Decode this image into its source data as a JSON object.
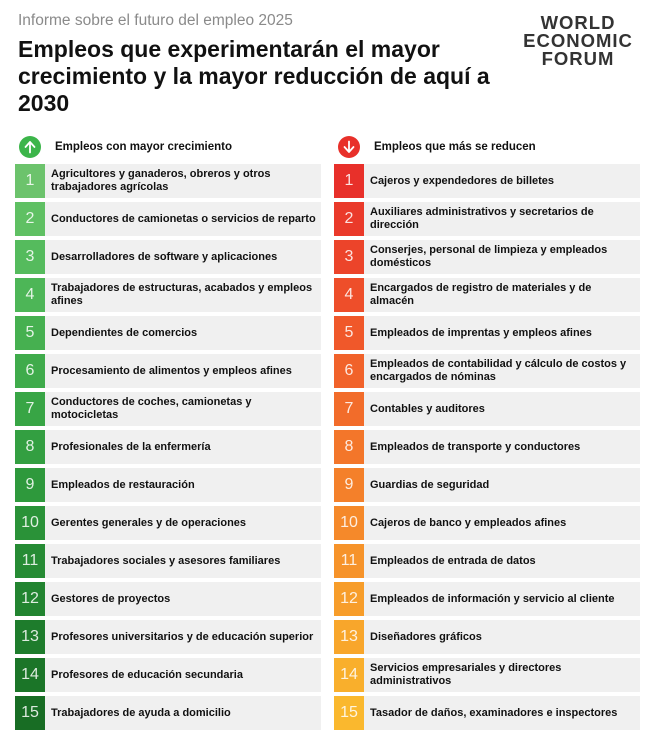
{
  "header": {
    "subtitle": "Informe sobre el futuro del empleo 2025",
    "title": "Empleos que experimentarán el mayor crecimiento y la mayor reducción de aquí a 2030"
  },
  "logo": {
    "line1": "WORLD",
    "line2": "ECONOMIC",
    "line3": "FORUM"
  },
  "growth": {
    "heading": "Empleos con mayor crecimiento",
    "icon": "arrow-up-icon",
    "items": [
      {
        "rank": "1",
        "label": "Agricultores y ganaderos, obreros y otros trabajadores agrícolas",
        "color": "#6cc36c"
      },
      {
        "rank": "2",
        "label": "Conductores de camionetas o servicios de reparto",
        "color": "#5fc063"
      },
      {
        "rank": "3",
        "label": "Desarrolladores de software y aplicaciones",
        "color": "#55bb5d"
      },
      {
        "rank": "4",
        "label": "Trabajadores de estructuras, acabados y empleos afines",
        "color": "#4db657"
      },
      {
        "rank": "5",
        "label": "Dependientes de comercios",
        "color": "#46b050"
      },
      {
        "rank": "6",
        "label": "Procesamiento de alimentos y empleos afines",
        "color": "#3fab4b"
      },
      {
        "rank": "7",
        "label": "Conductores de coches, camionetas y motocicletas",
        "color": "#38a545"
      },
      {
        "rank": "8",
        "label": "Profesionales de la enfermería",
        "color": "#339f41"
      },
      {
        "rank": "9",
        "label": "Empleados de restauración",
        "color": "#2e993c"
      },
      {
        "rank": "10",
        "label": "Gerentes generales y de operaciones",
        "color": "#2a9238"
      },
      {
        "rank": "11",
        "label": "Trabajadores sociales y asesores familiares",
        "color": "#268b34"
      },
      {
        "rank": "12",
        "label": "Gestores de proyectos",
        "color": "#228430"
      },
      {
        "rank": "13",
        "label": "Profesores universitarios y de educación superior",
        "color": "#1e7c2c"
      },
      {
        "rank": "14",
        "label": "Profesores de educación secundaria",
        "color": "#1b7528"
      },
      {
        "rank": "15",
        "label": "Trabajadores de ayuda a domicilio",
        "color": "#186d24"
      }
    ]
  },
  "decline": {
    "heading": "Empleos que más se reducen",
    "icon": "arrow-down-icon",
    "items": [
      {
        "rank": "1",
        "label": "Cajeros y expendedores de billetes",
        "color": "#e8302a"
      },
      {
        "rank": "2",
        "label": "Auxiliares administrativos y secretarios de dirección",
        "color": "#ea3a2a"
      },
      {
        "rank": "3",
        "label": "Conserjes, personal de limpieza y empleados domésticos",
        "color": "#ec442a"
      },
      {
        "rank": "4",
        "label": "Encargados de registro de materiales y de almacén",
        "color": "#ee4e2a"
      },
      {
        "rank": "5",
        "label": "Empleados de imprentas y empleos afines",
        "color": "#f0582a"
      },
      {
        "rank": "6",
        "label": "Empleados de contabilidad y cálculo de costos y encargados de nóminas",
        "color": "#f1622a"
      },
      {
        "rank": "7",
        "label": "Contables y auditores",
        "color": "#f26c2a"
      },
      {
        "rank": "8",
        "label": "Empleados de transporte y conductores",
        "color": "#f3762a"
      },
      {
        "rank": "9",
        "label": "Guardias de seguridad",
        "color": "#f4802a"
      },
      {
        "rank": "10",
        "label": "Cajeros de banco y empleados afines",
        "color": "#f5892a"
      },
      {
        "rank": "11",
        "label": "Empleados de entrada de datos",
        "color": "#f6932a"
      },
      {
        "rank": "12",
        "label": "Empleados de información y servicio al cliente",
        "color": "#f79d2a"
      },
      {
        "rank": "13",
        "label": "Diseñadores gráficos",
        "color": "#f8a62b"
      },
      {
        "rank": "14",
        "label": "Servicios empresariales y directores administrativos",
        "color": "#f9af2c"
      },
      {
        "rank": "15",
        "label": "Tasador de daños, examinadores e inspectores",
        "color": "#fab82e"
      }
    ]
  },
  "colors": {
    "growth_accent": "#3cb54a",
    "decline_accent": "#e8302a"
  }
}
